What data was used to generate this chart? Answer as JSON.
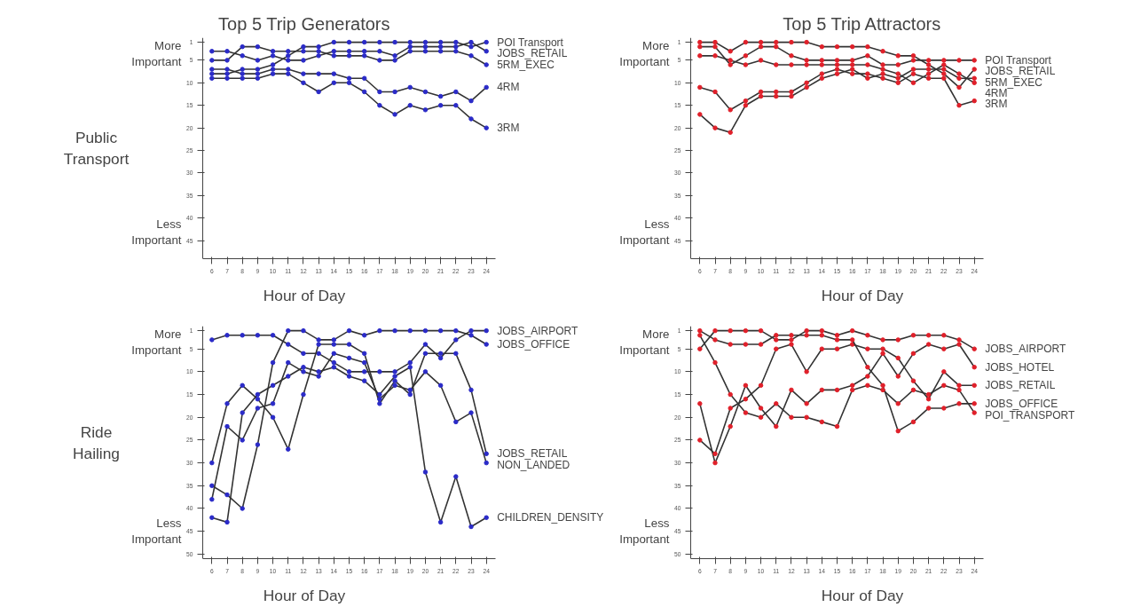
{
  "chart_data": [
    {
      "type": "line",
      "title": "Top 5 Trip Generators",
      "xlabel": "Hour of Day",
      "ylabel": "Public Transport",
      "annotations": [
        "More Important",
        "Less Important"
      ],
      "marker": "circle",
      "x": [
        6,
        7,
        8,
        9,
        10,
        11,
        12,
        13,
        14,
        15,
        16,
        17,
        18,
        19,
        20,
        21,
        22,
        23,
        24
      ],
      "xlim": [
        5.4,
        24.6
      ],
      "xticks": [
        6,
        7,
        8,
        9,
        10,
        11,
        12,
        13,
        14,
        15,
        16,
        17,
        18,
        19,
        20,
        21,
        22,
        23,
        24
      ],
      "ylim": [
        49,
        0
      ],
      "yticks": [
        1,
        5,
        10,
        15,
        20,
        25,
        30,
        35,
        40,
        45
      ],
      "series": [
        {
          "name": "POI Transport",
          "color": "#2b2bc8",
          "values": [
            8,
            8,
            7,
            7,
            6,
            4,
            2,
            2,
            1,
            1,
            1,
            1,
            1,
            1,
            1,
            1,
            1,
            2,
            1
          ]
        },
        {
          "name": "JOBS_RETAIL",
          "color": "#2b2bc8",
          "values": [
            3,
            3,
            4,
            5,
            4,
            5,
            5,
            4,
            3,
            3,
            3,
            3,
            4,
            2,
            2,
            2,
            2,
            1,
            3
          ]
        },
        {
          "name": "5RM_EXEC",
          "color": "#2b2bc8",
          "values": [
            5,
            5,
            2,
            2,
            3,
            3,
            3,
            3,
            4,
            4,
            4,
            5,
            5,
            3,
            3,
            3,
            3,
            4,
            6
          ]
        },
        {
          "name": "4RM",
          "color": "#2b2bc8",
          "values": [
            7,
            7,
            8,
            8,
            7,
            7,
            8,
            8,
            8,
            9,
            9,
            12,
            12,
            11,
            12,
            13,
            12,
            14,
            11
          ]
        },
        {
          "name": "3RM",
          "color": "#2b2bc8",
          "values": [
            9,
            9,
            9,
            9,
            8,
            8,
            10,
            12,
            10,
            10,
            12,
            15,
            17,
            15,
            16,
            15,
            15,
            18,
            20
          ]
        }
      ]
    },
    {
      "type": "line",
      "title": "Top 5 Trip Attractors",
      "xlabel": "Hour of Day",
      "annotations": [
        "More Important",
        "Less Important"
      ],
      "marker": "circle",
      "x": [
        6,
        7,
        8,
        9,
        10,
        11,
        12,
        13,
        14,
        15,
        16,
        17,
        18,
        19,
        20,
        21,
        22,
        23,
        24
      ],
      "xlim": [
        5.4,
        24.6
      ],
      "xticks": [
        6,
        7,
        8,
        9,
        10,
        11,
        12,
        13,
        14,
        15,
        16,
        17,
        18,
        19,
        20,
        21,
        22,
        23,
        24
      ],
      "ylim": [
        49,
        0
      ],
      "yticks": [
        1,
        5,
        10,
        15,
        20,
        25,
        30,
        35,
        40,
        45
      ],
      "series": [
        {
          "name": "POI Transport",
          "color": "#e0202a",
          "values": [
            2,
            2,
            6,
            4,
            2,
            2,
            4,
            5,
            5,
            5,
            5,
            4,
            6,
            6,
            5,
            5,
            5,
            5,
            5
          ]
        },
        {
          "name": "JOBS_RETAIL",
          "color": "#e0202a",
          "values": [
            1,
            1,
            3,
            1,
            1,
            1,
            1,
            1,
            2,
            2,
            2,
            2,
            3,
            4,
            4,
            6,
            8,
            11,
            7
          ]
        },
        {
          "name": "5RM_EXEC",
          "color": "#e0202a",
          "values": [
            17,
            20,
            21,
            15,
            13,
            13,
            13,
            11,
            9,
            8,
            7,
            9,
            8,
            9,
            7,
            7,
            7,
            9,
            9
          ]
        },
        {
          "name": "4RM",
          "color": "#e0202a",
          "values": [
            4,
            4,
            5,
            6,
            5,
            6,
            6,
            6,
            6,
            6,
            6,
            6,
            7,
            8,
            10,
            8,
            6,
            8,
            10
          ]
        },
        {
          "name": "3RM",
          "color": "#e0202a",
          "values": [
            11,
            12,
            16,
            14,
            12,
            12,
            12,
            10,
            8,
            7,
            8,
            8,
            9,
            10,
            8,
            9,
            9,
            15,
            14
          ]
        }
      ]
    },
    {
      "type": "line",
      "xlabel": "Hour of Day",
      "ylabel": "Ride Hailing",
      "annotations": [
        "More Important",
        "Less Important"
      ],
      "marker": "circle",
      "x": [
        6,
        7,
        8,
        9,
        10,
        11,
        12,
        13,
        14,
        15,
        16,
        17,
        18,
        19,
        20,
        21,
        22,
        23,
        24
      ],
      "xlim": [
        5.4,
        24.6
      ],
      "xticks": [
        6,
        7,
        8,
        9,
        10,
        11,
        12,
        13,
        14,
        15,
        16,
        17,
        18,
        19,
        20,
        21,
        22,
        23,
        24
      ],
      "ylim": [
        51,
        0
      ],
      "yticks": [
        1,
        5,
        10,
        15,
        20,
        25,
        30,
        35,
        40,
        45,
        50
      ],
      "series": [
        {
          "name": "JOBS_AIRPORT",
          "color": "#2b2bc8",
          "values": [
            3,
            2,
            2,
            2,
            2,
            4,
            6,
            6,
            8,
            10,
            10,
            10,
            10,
            8,
            4,
            7,
            3,
            1,
            1
          ]
        },
        {
          "name": "JOBS_OFFICE",
          "color": "#2b2bc8",
          "values": [
            35,
            37,
            40,
            26,
            8,
            1,
            1,
            3,
            3,
            1,
            2,
            1,
            1,
            1,
            1,
            1,
            1,
            2,
            4
          ]
        },
        {
          "name": "JOBS_RETAIL",
          "color": "#2b2bc8",
          "values": [
            30,
            17,
            13,
            16,
            20,
            27,
            15,
            4,
            4,
            4,
            6,
            17,
            12,
            15,
            6,
            6,
            6,
            14,
            28
          ]
        },
        {
          "name": "NON_LANDED",
          "color": "#2b2bc8",
          "values": [
            38,
            22,
            25,
            18,
            17,
            8,
            10,
            11,
            6,
            7,
            8,
            16,
            13,
            14,
            10,
            13,
            21,
            19,
            30
          ]
        },
        {
          "name": "CHILDREN_DENSITY",
          "color": "#2b2bc8",
          "values": [
            42,
            43,
            19,
            15,
            13,
            11,
            9,
            10,
            9,
            11,
            12,
            15,
            11,
            9,
            32,
            43,
            33,
            44,
            42
          ]
        }
      ]
    },
    {
      "type": "line",
      "xlabel": "Hour of Day",
      "annotations": [
        "More Important",
        "Less Important"
      ],
      "marker": "circle",
      "x": [
        6,
        7,
        8,
        9,
        10,
        11,
        12,
        13,
        14,
        15,
        16,
        17,
        18,
        19,
        20,
        21,
        22,
        23,
        24
      ],
      "xlim": [
        5.4,
        24.6
      ],
      "xticks": [
        6,
        7,
        8,
        9,
        10,
        11,
        12,
        13,
        14,
        15,
        16,
        17,
        18,
        19,
        20,
        21,
        22,
        23,
        24
      ],
      "ylim": [
        51,
        0
      ],
      "yticks": [
        1,
        5,
        10,
        15,
        20,
        25,
        30,
        35,
        40,
        45,
        50
      ],
      "series": [
        {
          "name": "JOBS_AIRPORT",
          "color": "#e0202a",
          "values": [
            5,
            1,
            1,
            1,
            1,
            3,
            3,
            1,
            1,
            2,
            1,
            2,
            3,
            3,
            2,
            2,
            2,
            3,
            5
          ]
        },
        {
          "name": "JOBS_HOTEL",
          "color": "#e0202a",
          "values": [
            17,
            30,
            22,
            13,
            18,
            22,
            14,
            17,
            14,
            14,
            13,
            11,
            6,
            11,
            6,
            4,
            5,
            4,
            9
          ]
        },
        {
          "name": "JOBS_RETAIL",
          "color": "#e0202a",
          "values": [
            25,
            28,
            18,
            16,
            13,
            5,
            4,
            10,
            5,
            5,
            4,
            5,
            5,
            7,
            12,
            16,
            10,
            13,
            13
          ]
        },
        {
          "name": "JOBS_OFFICE",
          "color": "#e0202a",
          "values": [
            1,
            3,
            4,
            4,
            4,
            2,
            2,
            2,
            2,
            3,
            3,
            9,
            13,
            23,
            21,
            18,
            18,
            17,
            17
          ]
        },
        {
          "name": "POI_TRANSPORT",
          "color": "#e0202a",
          "values": [
            2,
            8,
            15,
            19,
            20,
            17,
            20,
            20,
            21,
            22,
            14,
            13,
            14,
            17,
            14,
            15,
            13,
            14,
            19
          ]
        }
      ]
    }
  ]
}
